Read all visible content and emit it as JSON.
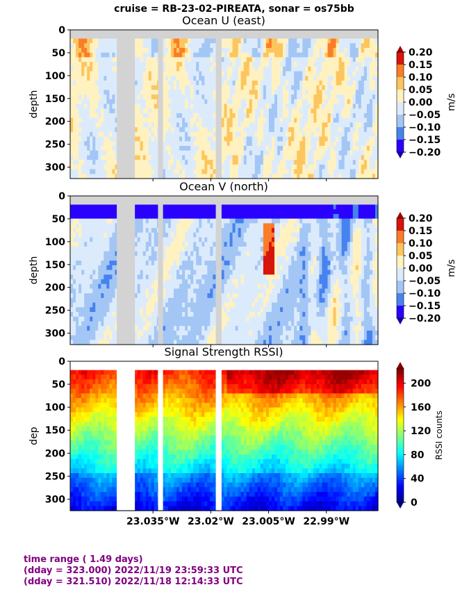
{
  "suptitle": "cruise = RB-23-02-PIREATA,  sonar = os75bb",
  "footer": {
    "line1": "time range ( 1.49 days)",
    "line2": "(dday = 323.000) 2022/11/19 23:59:33 UTC",
    "line3": "(dday = 321.510) 2022/11/18 12:14:33 UTC"
  },
  "colors": {
    "gap": "#d3d3d3",
    "footer_text": "#800080",
    "u_v_levels": [
      "#2a00ff",
      "#4682f0",
      "#a3c6f5",
      "#dcebfc",
      "#fff2c0",
      "#fdc55e",
      "#fb7d28",
      "#d7150a"
    ],
    "rssi_colormap": "jet"
  },
  "chart_data": [
    {
      "type": "heatmap",
      "title": "Ocean U (east)",
      "ylabel": "depth",
      "ylim": [
        325,
        0
      ],
      "y_ticks": [
        "0",
        "50",
        "100",
        "150",
        "200",
        "250",
        "300"
      ],
      "colorbar": {
        "label": "m/s",
        "ticks": [
          "0.20",
          "0.15",
          "0.10",
          "0.05",
          "0.00",
          "−0.05",
          "−0.10",
          "−0.15",
          "−0.20"
        ],
        "range": [
          -0.2,
          0.2
        ]
      },
      "first_bin_depth": 19,
      "gaps_longitude": [
        [
          -23.0444,
          -23.0397
        ],
        [
          -23.0337,
          -23.0324
        ],
        [
          -23.0187,
          -23.0172
        ]
      ],
      "x_range_longitude": [
        -23.0565,
        -22.9766
      ]
    },
    {
      "type": "heatmap",
      "title": "Ocean V (north)",
      "ylabel": "depth",
      "ylim": [
        325,
        0
      ],
      "y_ticks": [
        "0",
        "50",
        "100",
        "150",
        "200",
        "250",
        "300"
      ],
      "colorbar": {
        "label": "m/s",
        "ticks": [
          "0.20",
          "0.15",
          "0.10",
          "0.05",
          "0.00",
          "−0.05",
          "−0.10",
          "−0.15",
          "−0.20"
        ],
        "range": [
          -0.2,
          0.2
        ]
      },
      "first_bin_depth": 19,
      "gaps_longitude": [
        [
          -23.0444,
          -23.0397
        ],
        [
          -23.0337,
          -23.0324
        ],
        [
          -23.0187,
          -23.0172
        ]
      ],
      "x_range_longitude": [
        -23.0565,
        -22.9766
      ]
    },
    {
      "type": "heatmap",
      "title": "Signal Strength RSSI)",
      "ylabel": "dep",
      "ylim": [
        325,
        0
      ],
      "y_ticks": [
        "0",
        "50",
        "100",
        "150",
        "200",
        "250",
        "300"
      ],
      "x_ticks": [
        {
          "value": -23.035,
          "label": "23.035°W"
        },
        {
          "value": -23.02,
          "label": "23.02°W"
        },
        {
          "value": -23.005,
          "label": "23.005°W"
        },
        {
          "value": -22.99,
          "label": "22.99°W"
        }
      ],
      "colorbar": {
        "label": "RSSI counts",
        "ticks": [
          "200",
          "160",
          "120",
          "80",
          "40",
          "0"
        ],
        "range": [
          0,
          225
        ]
      },
      "first_bin_depth": 19,
      "gaps_longitude": [
        [
          -23.0444,
          -23.0397
        ],
        [
          -23.0337,
          -23.0324
        ],
        [
          -23.0187,
          -23.0172
        ]
      ],
      "x_range_longitude": [
        -23.0565,
        -22.9766
      ]
    }
  ]
}
